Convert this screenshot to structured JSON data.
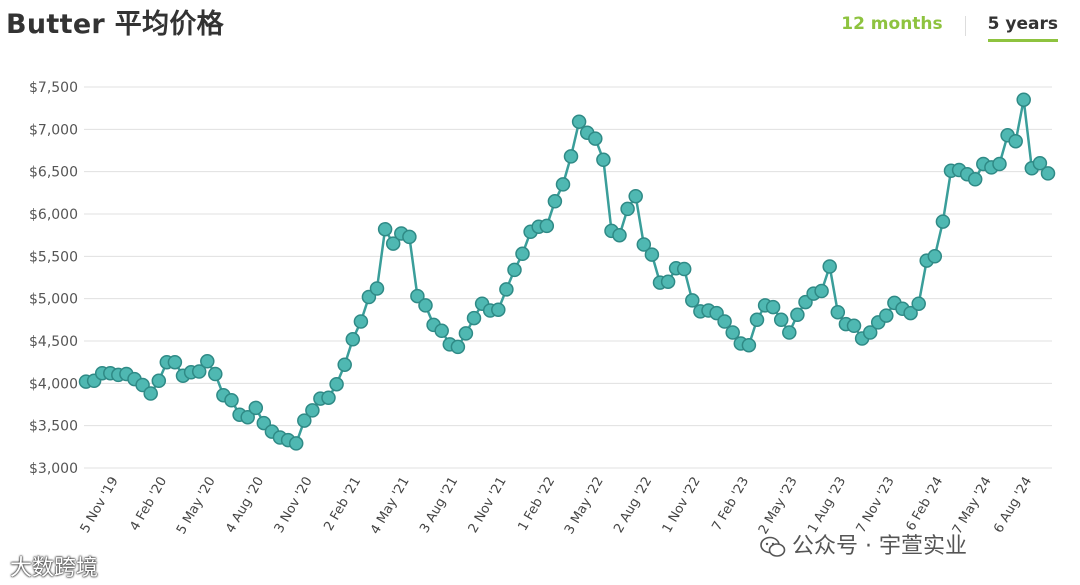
{
  "header": {
    "title": "Butter 平均价格",
    "tabs": [
      {
        "label": "12 months",
        "active": false
      },
      {
        "label": "5 years",
        "active": true
      }
    ]
  },
  "colors": {
    "line": "#3a9e9a",
    "marker_fill": "#4fb8b2",
    "marker_stroke": "#2f8a86",
    "grid": "#e0e0e0",
    "tab_active_underline": "#8ec33f",
    "tab_inactive": "#8ec33f"
  },
  "watermarks": {
    "right": "公众号 · 宇萱实业",
    "left": "大数跨境"
  },
  "icons": {
    "wechat": "wechat-icon"
  },
  "chart_data": {
    "type": "line",
    "title": "Butter 平均价格",
    "xlabel": "",
    "ylabel": "",
    "ylim": [
      3000,
      7500
    ],
    "yticks": [
      3000,
      3500,
      4000,
      4500,
      5000,
      5500,
      6000,
      6500,
      7000,
      7500
    ],
    "ytick_labels": [
      "$3,000",
      "$3,500",
      "$4,000",
      "$4,500",
      "$5,000",
      "$5,500",
      "$6,000",
      "$6,500",
      "$7,000",
      "$7,500"
    ],
    "grid": true,
    "x_ticks": [
      {
        "label": "5 Nov '19",
        "index": 3
      },
      {
        "label": "4 Feb '20",
        "index": 9
      },
      {
        "label": "5 May '20",
        "index": 15
      },
      {
        "label": "4 Aug '20",
        "index": 21
      },
      {
        "label": "3 Nov '20",
        "index": 27
      },
      {
        "label": "2 Feb '21",
        "index": 33
      },
      {
        "label": "4 May '21",
        "index": 39
      },
      {
        "label": "3 Aug '21",
        "index": 45
      },
      {
        "label": "2 Nov '21",
        "index": 51
      },
      {
        "label": "1 Feb '22",
        "index": 57
      },
      {
        "label": "3 May '22",
        "index": 63
      },
      {
        "label": "2 Aug '22",
        "index": 69
      },
      {
        "label": "1 Nov '22",
        "index": 75
      },
      {
        "label": "7 Feb '23",
        "index": 81
      },
      {
        "label": "2 May '23",
        "index": 87
      },
      {
        "label": "1 Aug '23",
        "index": 93
      },
      {
        "label": "7 Nov '23",
        "index": 99
      },
      {
        "label": "6 Feb '24",
        "index": 105
      },
      {
        "label": "7 May '24",
        "index": 111
      },
      {
        "label": "6 Aug '24",
        "index": 116
      }
    ],
    "series": [
      {
        "values": [
          4020,
          4030,
          4120,
          4120,
          4100,
          4110,
          4050,
          3980,
          3880,
          4030,
          4250,
          4250,
          4090,
          4130,
          4140,
          4260,
          4110,
          3860,
          3800,
          3630,
          3600,
          3710,
          3530,
          3430,
          3360,
          3330,
          3290,
          3560,
          3680,
          3820,
          3830,
          3990,
          4220,
          4520,
          4730,
          5020,
          5120,
          5820,
          5650,
          5770,
          5730,
          5030,
          4920,
          4690,
          4620,
          4460,
          4430,
          4590,
          4770,
          4940,
          4860,
          4870,
          5110,
          5340,
          5530,
          5790,
          5850,
          5860,
          6150,
          6350,
          6680,
          7090,
          6960,
          6890,
          6640,
          5800,
          5750,
          6060,
          6210,
          5640,
          5520,
          5190,
          5200,
          5360,
          5350,
          4980,
          4850,
          4860,
          4830,
          4730,
          4600,
          4470,
          4450,
          4750,
          4920,
          4900,
          4750,
          4600,
          4810,
          4960,
          5060,
          5090,
          5380,
          4840,
          4700,
          4680,
          4530,
          4600,
          4720,
          4800,
          4950,
          4880,
          4830,
          4940,
          5450,
          5500,
          5910,
          6510,
          6520,
          6470,
          6410,
          6590,
          6550,
          6590,
          6930,
          6860,
          7350,
          6540,
          6600,
          6480
        ]
      }
    ]
  }
}
